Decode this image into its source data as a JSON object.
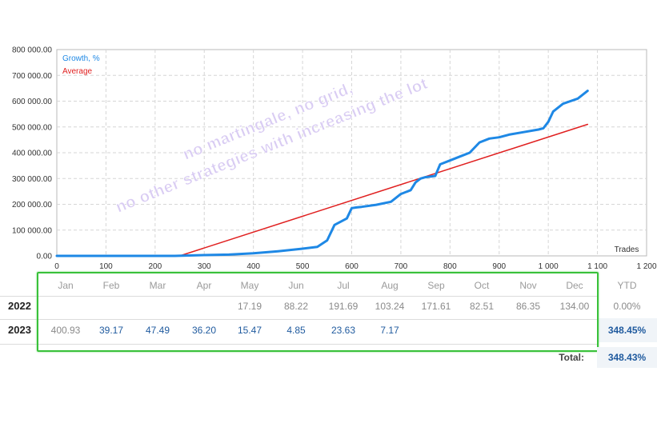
{
  "chart_data": {
    "type": "line",
    "xlabel": "Trades",
    "ylabel": "",
    "xlim": [
      0,
      1200
    ],
    "ylim": [
      0,
      800000
    ],
    "x_ticks": [
      "0",
      "100",
      "200",
      "300",
      "400",
      "500",
      "600",
      "700",
      "800",
      "900",
      "1 000",
      "1 100",
      "1 200"
    ],
    "x_tick_values": [
      0,
      100,
      200,
      300,
      400,
      500,
      600,
      700,
      800,
      900,
      1000,
      1100,
      1200
    ],
    "y_ticks": [
      "0.00",
      "100 000.00",
      "200 000.00",
      "300 000.00",
      "400 000.00",
      "500 000.00",
      "600 000.00",
      "700 000.00",
      "800 000.00"
    ],
    "y_tick_values": [
      0,
      100000,
      200000,
      300000,
      400000,
      500000,
      600000,
      700000,
      800000
    ],
    "grid": true,
    "legend_position": "top-left",
    "colors": {
      "growth": "#1e88e5",
      "average": "#e02020"
    },
    "series": [
      {
        "name": "Growth, %",
        "x": [
          0,
          100,
          200,
          240,
          300,
          350,
          400,
          450,
          500,
          530,
          550,
          560,
          565,
          590,
          600,
          610,
          620,
          650,
          680,
          700,
          720,
          730,
          740,
          750,
          770,
          780,
          800,
          820,
          840,
          860,
          880,
          900,
          920,
          950,
          980,
          990,
          1000,
          1010,
          1030,
          1060,
          1080
        ],
        "values": [
          0,
          0,
          0,
          0,
          3000,
          5000,
          10000,
          18000,
          28000,
          35000,
          60000,
          100000,
          120000,
          145000,
          185000,
          188000,
          190000,
          198000,
          210000,
          240000,
          255000,
          285000,
          300000,
          305000,
          310000,
          355000,
          370000,
          385000,
          400000,
          440000,
          455000,
          460000,
          470000,
          480000,
          490000,
          495000,
          520000,
          560000,
          590000,
          610000,
          640000
        ]
      },
      {
        "name": "Average",
        "x": [
          250,
          1080
        ],
        "values": [
          0,
          510000
        ]
      }
    ]
  },
  "watermark": {
    "line1": "no martingale, no grid,",
    "line2": "no other strategies with increasing the lot"
  },
  "returns_table": {
    "months": [
      "Jan",
      "Feb",
      "Mar",
      "Apr",
      "May",
      "Jun",
      "Jul",
      "Aug",
      "Sep",
      "Oct",
      "Nov",
      "Dec"
    ],
    "ytd_label": "YTD",
    "rows": [
      {
        "year": "2022",
        "values": [
          "",
          "",
          "",
          "",
          "17.19",
          "88.22",
          "191.69",
          "103.24",
          "171.61",
          "82.51",
          "86.35",
          "134.00"
        ],
        "ytd": "0.00%"
      },
      {
        "year": "2023",
        "values": [
          "400.93",
          "39.17",
          "47.49",
          "36.20",
          "15.47",
          "4.85",
          "23.63",
          "7.17",
          "",
          "",
          "",
          ""
        ],
        "ytd": "348.45%"
      }
    ],
    "total_label": "Total:",
    "total_value": "348.43%"
  }
}
